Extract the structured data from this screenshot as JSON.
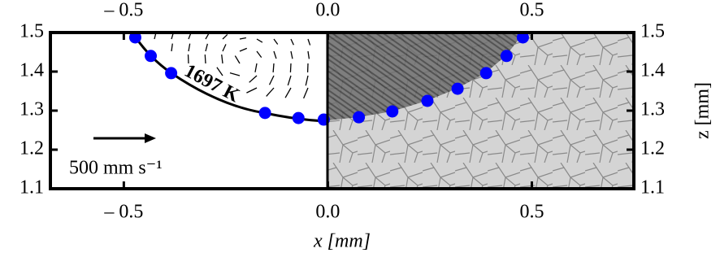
{
  "chart_data": {
    "type": "scatter",
    "xlabel": "x [mm]",
    "ylabel": "z [mm]",
    "annotations": [
      "1697 K",
      "500 mm s⁻¹"
    ],
    "xlim": [
      -0.68,
      0.75
    ],
    "ylim": [
      1.1,
      1.5
    ],
    "xticks": [
      {
        "value": -0.5,
        "label": "– 0.5"
      },
      {
        "value": 0,
        "label": "0.0"
      },
      0.5
    ],
    "yticks": [
      1.1,
      1.2,
      1.3,
      1.4,
      1.5
    ],
    "series": [
      {
        "color": "#0000ff",
        "x": [
          -0.472,
          -0.434,
          -0.384,
          -0.154,
          -0.072,
          -0.01,
          0.076,
          0.158,
          0.244,
          0.318,
          0.388,
          0.438,
          0.478
        ],
        "values": [
          1.4875,
          1.44,
          1.396,
          1.294,
          1.281,
          1.277,
          1.283,
          1.298,
          1.325,
          1.356,
          1.396,
          1.44,
          1.4875
        ]
      }
    ]
  }
}
